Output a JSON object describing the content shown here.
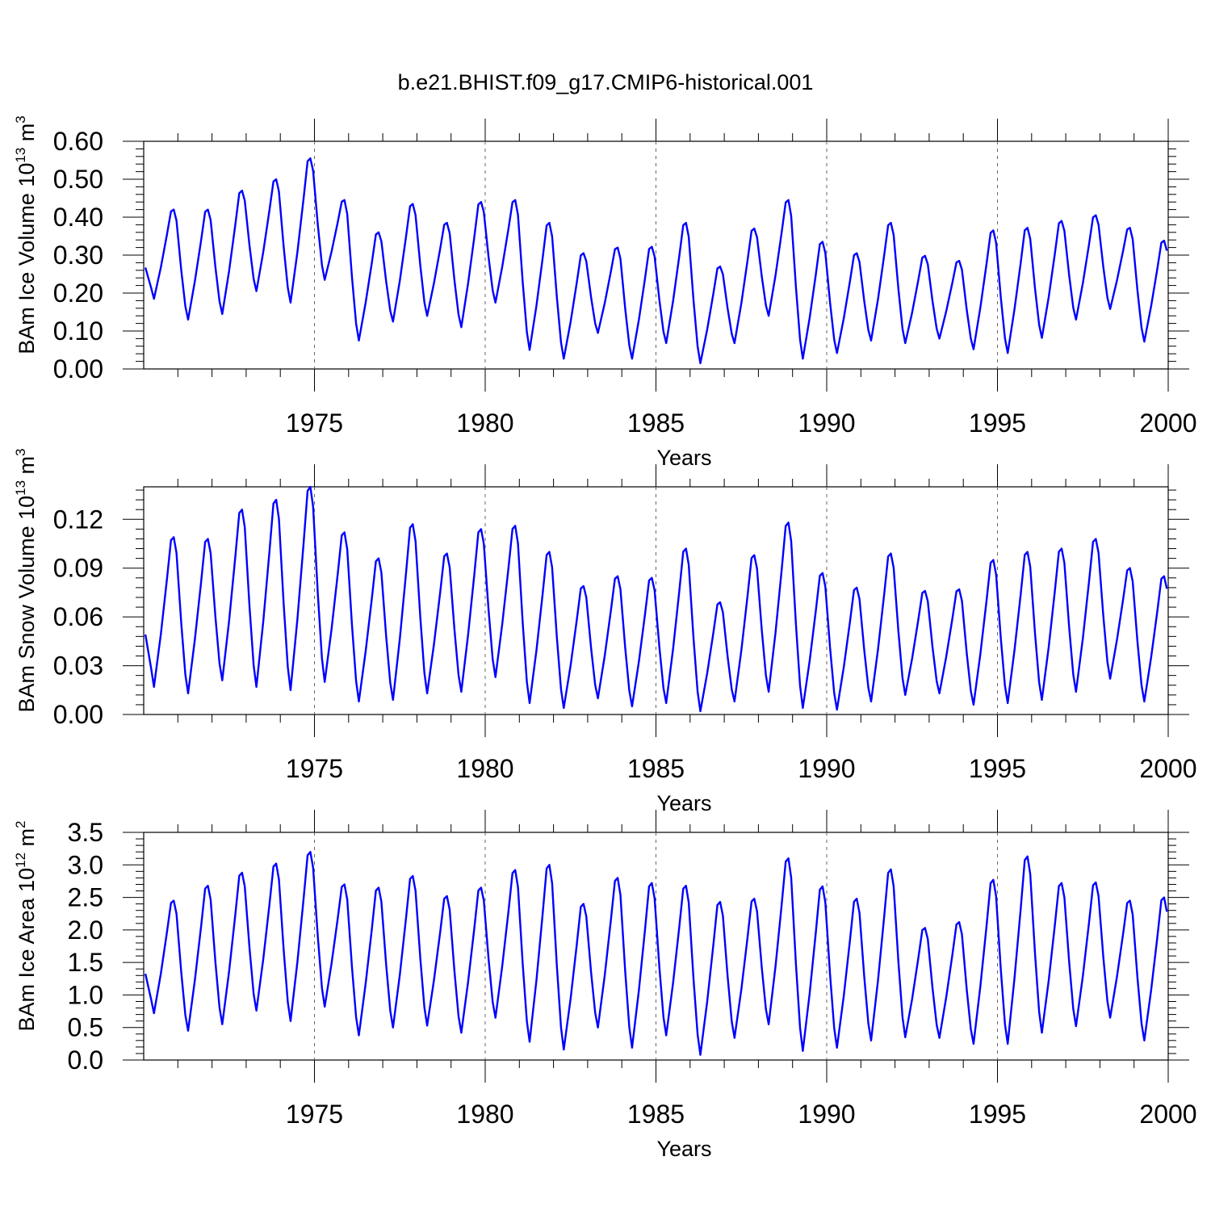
{
  "figure_title": "b.e21.BHIST.f09_g17.CMIP6-historical.001",
  "chart_data": [
    {
      "type": "line",
      "name": "ice-volume",
      "ylabel_main": "BAm Ice Volume 10",
      "ylabel_exp": "13",
      "ylabel_unit": " m",
      "ylabel_unit_exp": "3",
      "xlabel": "Years",
      "xlim": [
        1970,
        2000
      ],
      "ylim": [
        0,
        0.6
      ],
      "xticks": [
        "1975",
        "1980",
        "1985",
        "1990",
        "1995",
        "2000"
      ],
      "yticks": [
        "0.00",
        "0.10",
        "0.20",
        "0.30",
        "0.40",
        "0.50",
        "0.60"
      ],
      "series": [
        {
          "name": "BAm Ice Volume",
          "color": "#0000ff",
          "peaks": [
            0.42,
            0.42,
            0.47,
            0.5,
            0.555,
            0.445,
            0.36,
            0.435,
            0.385,
            0.44,
            0.445,
            0.385,
            0.305,
            0.32,
            0.322,
            0.385,
            0.27,
            0.37,
            0.445,
            0.335,
            0.305,
            0.385,
            0.298,
            0.285,
            0.365,
            0.372,
            0.39,
            0.405,
            0.372,
            0.338
          ],
          "troughs": [
            0.185,
            0.13,
            0.145,
            0.205,
            0.175,
            0.235,
            0.075,
            0.125,
            0.14,
            0.11,
            0.175,
            0.05,
            0.027,
            0.095,
            0.027,
            0.068,
            0.015,
            0.068,
            0.14,
            0.027,
            0.042,
            0.075,
            0.068,
            0.08,
            0.052,
            0.042,
            0.082,
            0.13,
            0.158,
            0.072
          ]
        }
      ]
    },
    {
      "type": "line",
      "name": "snow-volume",
      "ylabel_main": "BAm Snow Volume 10",
      "ylabel_exp": "13",
      "ylabel_unit": " m",
      "ylabel_unit_exp": "3",
      "xlabel": "Years",
      "xlim": [
        1970,
        2000
      ],
      "ylim": [
        0,
        0.14
      ],
      "xticks": [
        "1975",
        "1980",
        "1985",
        "1990",
        "1995",
        "2000"
      ],
      "yticks": [
        "0.00",
        "0.03",
        "0.06",
        "0.09",
        "0.12"
      ],
      "series": [
        {
          "name": "BAm Snow Volume",
          "color": "#0000ff",
          "peaks": [
            0.109,
            0.108,
            0.126,
            0.132,
            0.14,
            0.112,
            0.096,
            0.117,
            0.099,
            0.114,
            0.116,
            0.1,
            0.079,
            0.085,
            0.084,
            0.102,
            0.069,
            0.098,
            0.118,
            0.087,
            0.078,
            0.099,
            0.076,
            0.077,
            0.095,
            0.1,
            0.102,
            0.108,
            0.09,
            0.085
          ],
          "troughs": [
            0.017,
            0.013,
            0.021,
            0.017,
            0.015,
            0.02,
            0.008,
            0.009,
            0.013,
            0.014,
            0.023,
            0.007,
            0.004,
            0.01,
            0.005,
            0.007,
            0.002,
            0.008,
            0.014,
            0.004,
            0.003,
            0.008,
            0.012,
            0.013,
            0.006,
            0.007,
            0.009,
            0.014,
            0.022,
            0.008
          ]
        }
      ]
    },
    {
      "type": "line",
      "name": "ice-area",
      "ylabel_main": "BAm Ice Area 10",
      "ylabel_exp": "12",
      "ylabel_unit": " m",
      "ylabel_unit_exp": "2",
      "xlabel": "Years",
      "xlim": [
        1970,
        2000
      ],
      "ylim": [
        0,
        3.5
      ],
      "xticks": [
        "1975",
        "1980",
        "1985",
        "1990",
        "1995",
        "2000"
      ],
      "yticks": [
        "0.0",
        "0.5",
        "1.0",
        "1.5",
        "2.0",
        "2.5",
        "3.0",
        "3.5"
      ],
      "series": [
        {
          "name": "BAm Ice Area",
          "color": "#0000ff",
          "peaks": [
            2.45,
            2.68,
            2.88,
            3.02,
            3.2,
            2.7,
            2.65,
            2.83,
            2.52,
            2.65,
            2.92,
            3.0,
            2.4,
            2.8,
            2.72,
            2.68,
            2.43,
            2.48,
            3.1,
            2.67,
            2.48,
            2.93,
            2.03,
            2.12,
            2.77,
            3.13,
            2.72,
            2.73,
            2.45,
            2.5
          ],
          "troughs": [
            0.72,
            0.45,
            0.55,
            0.76,
            0.6,
            0.82,
            0.38,
            0.5,
            0.53,
            0.42,
            0.65,
            0.28,
            0.16,
            0.5,
            0.19,
            0.38,
            0.08,
            0.34,
            0.55,
            0.14,
            0.19,
            0.3,
            0.35,
            0.34,
            0.25,
            0.25,
            0.42,
            0.52,
            0.65,
            0.3
          ]
        }
      ]
    }
  ]
}
